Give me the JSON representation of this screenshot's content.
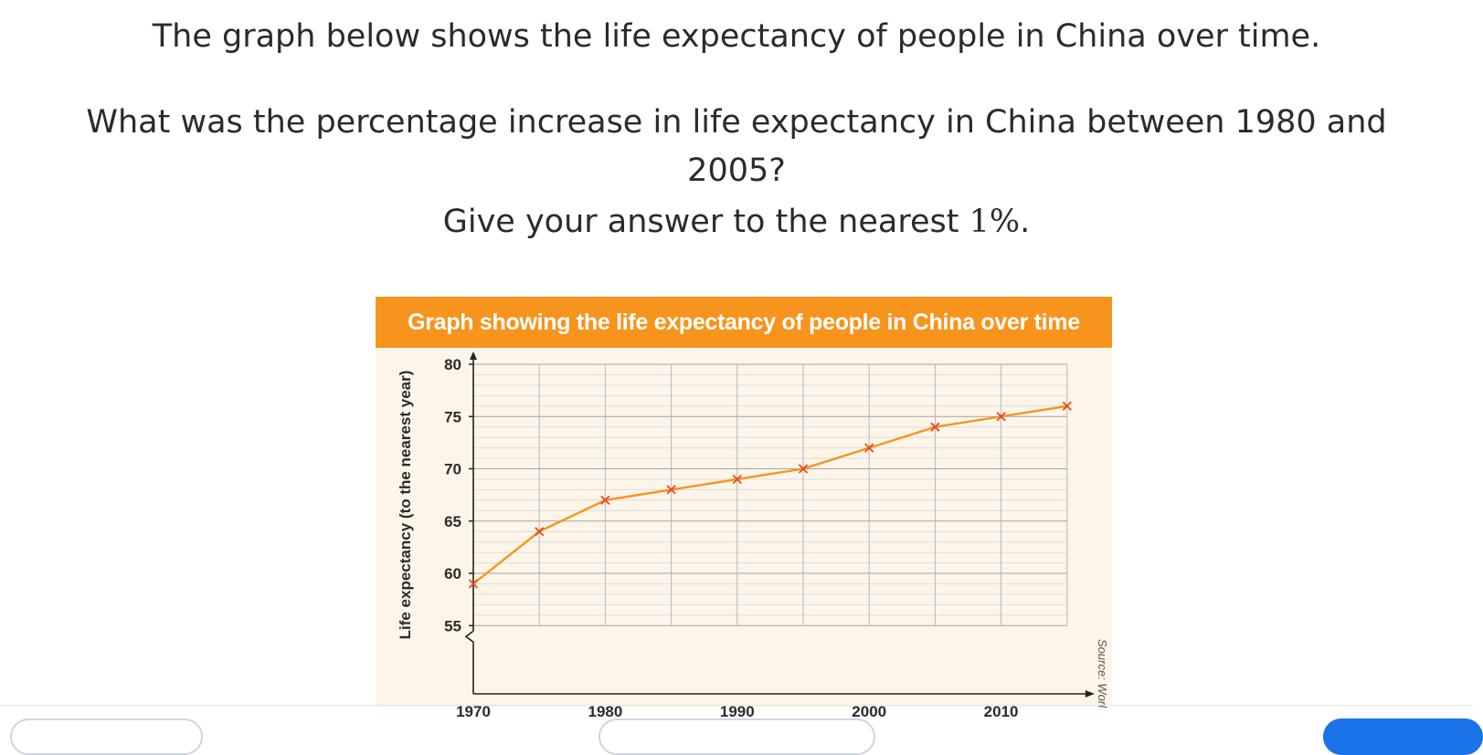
{
  "question": {
    "line1": "The graph below shows the life expectancy of people in China over time.",
    "line2": "What was the percentage increase in life expectancy in China between 1980 and",
    "line3": "2005?",
    "line4_prefix": "Give your answer to the nearest ",
    "line4_percent": "1%",
    "line4_suffix": "."
  },
  "chart_data": {
    "type": "line",
    "title": "Graph showing the life expectancy of people in China over time",
    "ylabel": "Life expectancy (to the nearest year)",
    "xlabel": "",
    "x": [
      1970,
      1975,
      1980,
      1985,
      1990,
      1995,
      2000,
      2005,
      2010,
      2015
    ],
    "series": [
      {
        "values": [
          59,
          64,
          67,
          68,
          69,
          70,
          72,
          74,
          75,
          76
        ]
      }
    ],
    "xticks": [
      1970,
      1980,
      1990,
      2000,
      2010
    ],
    "yticks": [
      55,
      60,
      65,
      70,
      75,
      80
    ],
    "xlim": [
      1970,
      2015
    ],
    "ylim": [
      55,
      80
    ],
    "y_axis_break": true,
    "grid": true,
    "line_color": "#f7941d",
    "marker_color": "#e8491d",
    "marker": "x"
  },
  "source_note": "Source: Worl",
  "colors": {
    "header_bg": "#f7941d",
    "card_bg": "#fdf5e8",
    "answer_accent": "#1a73e8"
  }
}
